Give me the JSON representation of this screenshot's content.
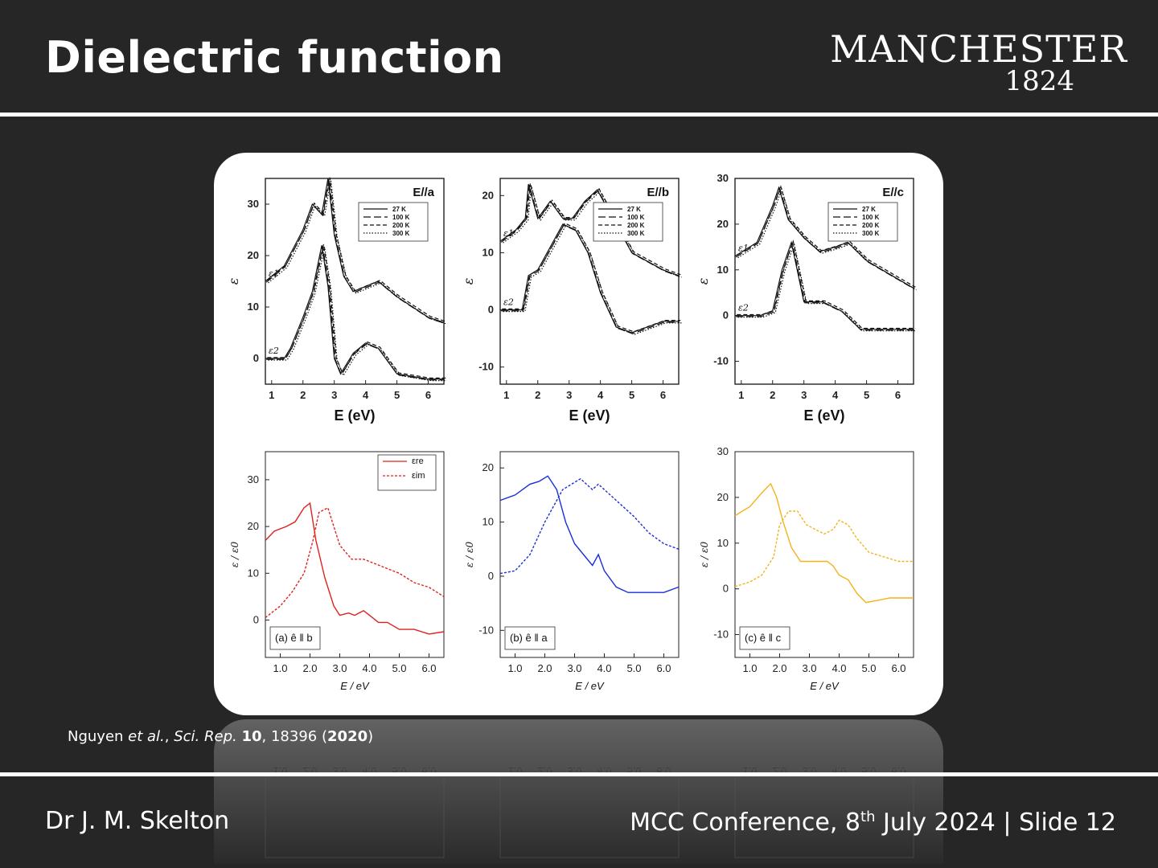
{
  "slide": {
    "title": "Dielectric function",
    "logo": {
      "name": "MANCHESTER",
      "year": "1824"
    },
    "citation": {
      "authors": "Nguyen",
      "etal": "et al.",
      "journal": "Sci. Rep.",
      "volume": "10",
      "pages": "18396",
      "year": "2020"
    },
    "footer": {
      "author": "Dr J. M. Skelton",
      "event": "MCC Conference, 8",
      "ordinal": "th",
      "date_rest": " July 2024",
      "separator": "|",
      "slide": "Slide 12"
    }
  },
  "chart_data": [
    {
      "type": "line",
      "panel": "E//a",
      "xlabel": "E (eV)",
      "ylabel": "ε",
      "xlim": [
        0.8,
        6.5
      ],
      "ylim": [
        -5,
        35
      ],
      "xticks": [
        1,
        2,
        3,
        4,
        5,
        6
      ],
      "yticks": [
        0,
        10,
        20,
        30
      ],
      "legend": [
        "27 K",
        "100 K",
        "200 K",
        "300 K"
      ],
      "series": [
        {
          "name": "ε1",
          "x": [
            0.8,
            1.4,
            2.0,
            2.3,
            2.6,
            2.8,
            3.0,
            3.3,
            3.6,
            4.0,
            4.4,
            5.0,
            6.0,
            6.5
          ],
          "y": [
            15,
            18,
            25,
            30,
            28,
            35,
            24,
            16,
            13,
            14,
            15,
            12,
            8,
            7
          ]
        },
        {
          "name": "ε2",
          "x": [
            0.8,
            1.4,
            1.6,
            2.0,
            2.3,
            2.6,
            2.8,
            3.0,
            3.2,
            3.6,
            4.0,
            4.4,
            5.0,
            6.0,
            6.5
          ],
          "y": [
            0,
            0,
            2,
            8,
            13,
            22,
            14,
            0,
            -3,
            1,
            3,
            2,
            -3,
            -4,
            -4
          ]
        }
      ]
    },
    {
      "type": "line",
      "panel": "E//b",
      "xlabel": "E (eV)",
      "ylabel": "ε",
      "xlim": [
        0.8,
        6.5
      ],
      "ylim": [
        -13,
        23
      ],
      "xticks": [
        1,
        2,
        3,
        4,
        5,
        6
      ],
      "yticks": [
        -10,
        0,
        10,
        20
      ],
      "legend": [
        "27 K",
        "100 K",
        "200 K",
        "300 K"
      ],
      "series": [
        {
          "name": "ε1",
          "x": [
            0.8,
            1.3,
            1.6,
            1.7,
            2.0,
            2.4,
            2.8,
            3.1,
            3.5,
            3.9,
            4.3,
            5.0,
            6.0,
            6.5
          ],
          "y": [
            12,
            14,
            16,
            22,
            16,
            19,
            16,
            16,
            19,
            21,
            17,
            10,
            7,
            6
          ]
        },
        {
          "name": "ε2",
          "x": [
            0.8,
            1.5,
            1.7,
            2.0,
            2.4,
            2.8,
            3.2,
            3.6,
            4.0,
            4.5,
            5.0,
            6.0,
            6.5
          ],
          "y": [
            0,
            0,
            6,
            7,
            11,
            15,
            14,
            10,
            3,
            -3,
            -4,
            -2,
            -2
          ]
        }
      ]
    },
    {
      "type": "line",
      "panel": "E//c",
      "xlabel": "E (eV)",
      "ylabel": "ε",
      "xlim": [
        0.8,
        6.5
      ],
      "ylim": [
        -15,
        30
      ],
      "xticks": [
        1,
        2,
        3,
        4,
        5,
        6
      ],
      "yticks": [
        -10,
        0,
        10,
        20,
        30
      ],
      "legend": [
        "27 K",
        "100 K",
        "200 K",
        "300 K"
      ],
      "series": [
        {
          "name": "ε1",
          "x": [
            0.8,
            1.5,
            2.0,
            2.2,
            2.5,
            3.0,
            3.5,
            4.0,
            4.4,
            5.0,
            6.0,
            6.5
          ],
          "y": [
            13,
            16,
            24,
            28,
            21,
            17,
            14,
            15,
            16,
            12,
            8,
            6
          ]
        },
        {
          "name": "ε2",
          "x": [
            0.8,
            1.6,
            2.0,
            2.3,
            2.6,
            3.0,
            3.6,
            4.2,
            4.8,
            5.5,
            6.5
          ],
          "y": [
            0,
            0,
            1,
            10,
            16,
            3,
            3,
            1,
            -3,
            -3,
            -3
          ]
        }
      ]
    },
    {
      "type": "line",
      "panel": "(a) ê ‖ b",
      "xlabel": "E / eV",
      "ylabel": "ε / ε0",
      "xlim": [
        0.5,
        6.5
      ],
      "ylim": [
        -8,
        36
      ],
      "xticks": [
        1.0,
        2.0,
        3.0,
        4.0,
        5.0,
        6.0
      ],
      "yticks": [
        0,
        10,
        20,
        30
      ],
      "color": "#e0201c",
      "legend": [
        "εre",
        "εim"
      ],
      "series": [
        {
          "name": "εre",
          "style": "solid",
          "x": [
            0.5,
            0.8,
            1.2,
            1.5,
            1.8,
            2.0,
            2.2,
            2.5,
            2.8,
            3.0,
            3.3,
            3.5,
            3.8,
            4.0,
            4.3,
            4.6,
            5.0,
            5.5,
            6.0,
            6.5
          ],
          "y": [
            17,
            19,
            20,
            21,
            24,
            25,
            17,
            9,
            3,
            1,
            1.5,
            1,
            2,
            1,
            -0.5,
            -0.5,
            -2,
            -2,
            -3,
            -2.5
          ]
        },
        {
          "name": "εim",
          "style": "dashed",
          "x": [
            0.5,
            1.0,
            1.4,
            1.8,
            2.1,
            2.3,
            2.6,
            2.8,
            3.0,
            3.4,
            3.8,
            4.2,
            4.6,
            5.0,
            5.5,
            6.0,
            6.5
          ],
          "y": [
            0.5,
            3,
            6,
            10,
            17,
            23,
            24,
            20,
            16,
            13,
            13,
            12,
            11,
            10,
            8,
            7,
            5
          ]
        }
      ]
    },
    {
      "type": "line",
      "panel": "(b) ê ‖ a",
      "xlabel": "E / eV",
      "ylabel": "ε / ε0",
      "xlim": [
        0.5,
        6.5
      ],
      "ylim": [
        -15,
        23
      ],
      "xticks": [
        1.0,
        2.0,
        3.0,
        4.0,
        5.0,
        6.0
      ],
      "yticks": [
        -10,
        0,
        10,
        20
      ],
      "color": "#1a2fd8",
      "legend": [],
      "series": [
        {
          "name": "εre",
          "style": "solid",
          "x": [
            0.5,
            1.0,
            1.5,
            1.8,
            2.1,
            2.4,
            2.7,
            3.0,
            3.3,
            3.6,
            3.8,
            4.0,
            4.4,
            4.8,
            5.2,
            5.6,
            6.0,
            6.5
          ],
          "y": [
            14,
            15,
            17,
            17.5,
            18.5,
            16,
            10,
            6,
            4,
            2,
            4,
            1,
            -2,
            -3,
            -3,
            -3,
            -3,
            -2
          ]
        },
        {
          "name": "εim",
          "style": "dashed",
          "x": [
            0.5,
            1.0,
            1.5,
            2.0,
            2.3,
            2.6,
            2.9,
            3.2,
            3.4,
            3.6,
            3.8,
            4.0,
            4.4,
            5.0,
            5.5,
            6.0,
            6.5
          ],
          "y": [
            0.5,
            1,
            4,
            10,
            13,
            16,
            17,
            18,
            17,
            16,
            17,
            16,
            14,
            11,
            8,
            6,
            5
          ]
        }
      ]
    },
    {
      "type": "line",
      "panel": "(c) ê ‖ c",
      "xlabel": "E / eV",
      "ylabel": "ε / ε0",
      "xlim": [
        0.5,
        6.5
      ],
      "ylim": [
        -15,
        30
      ],
      "xticks": [
        1.0,
        2.0,
        3.0,
        4.0,
        5.0,
        6.0
      ],
      "yticks": [
        -10,
        0,
        10,
        20,
        30
      ],
      "color": "#f2b21a",
      "legend": [],
      "series": [
        {
          "name": "εre",
          "style": "solid",
          "x": [
            0.5,
            1.0,
            1.4,
            1.7,
            1.9,
            2.1,
            2.4,
            2.7,
            3.0,
            3.3,
            3.6,
            3.8,
            4.0,
            4.3,
            4.6,
            4.9,
            5.3,
            5.7,
            6.1,
            6.5
          ],
          "y": [
            16,
            18,
            21,
            23,
            20,
            15,
            9,
            6,
            6,
            6,
            6,
            5,
            3,
            2,
            -1,
            -3,
            -2.5,
            -2,
            -2,
            -2
          ]
        },
        {
          "name": "εim",
          "style": "dashed",
          "x": [
            0.5,
            1.0,
            1.4,
            1.8,
            2.0,
            2.3,
            2.6,
            2.9,
            3.2,
            3.5,
            3.8,
            4.0,
            4.3,
            4.6,
            5.0,
            5.5,
            6.0,
            6.5
          ],
          "y": [
            0.5,
            1.5,
            3,
            7,
            14,
            17,
            17,
            14,
            13,
            12,
            13,
            15,
            14,
            11,
            8,
            7,
            6,
            6
          ]
        }
      ]
    }
  ]
}
